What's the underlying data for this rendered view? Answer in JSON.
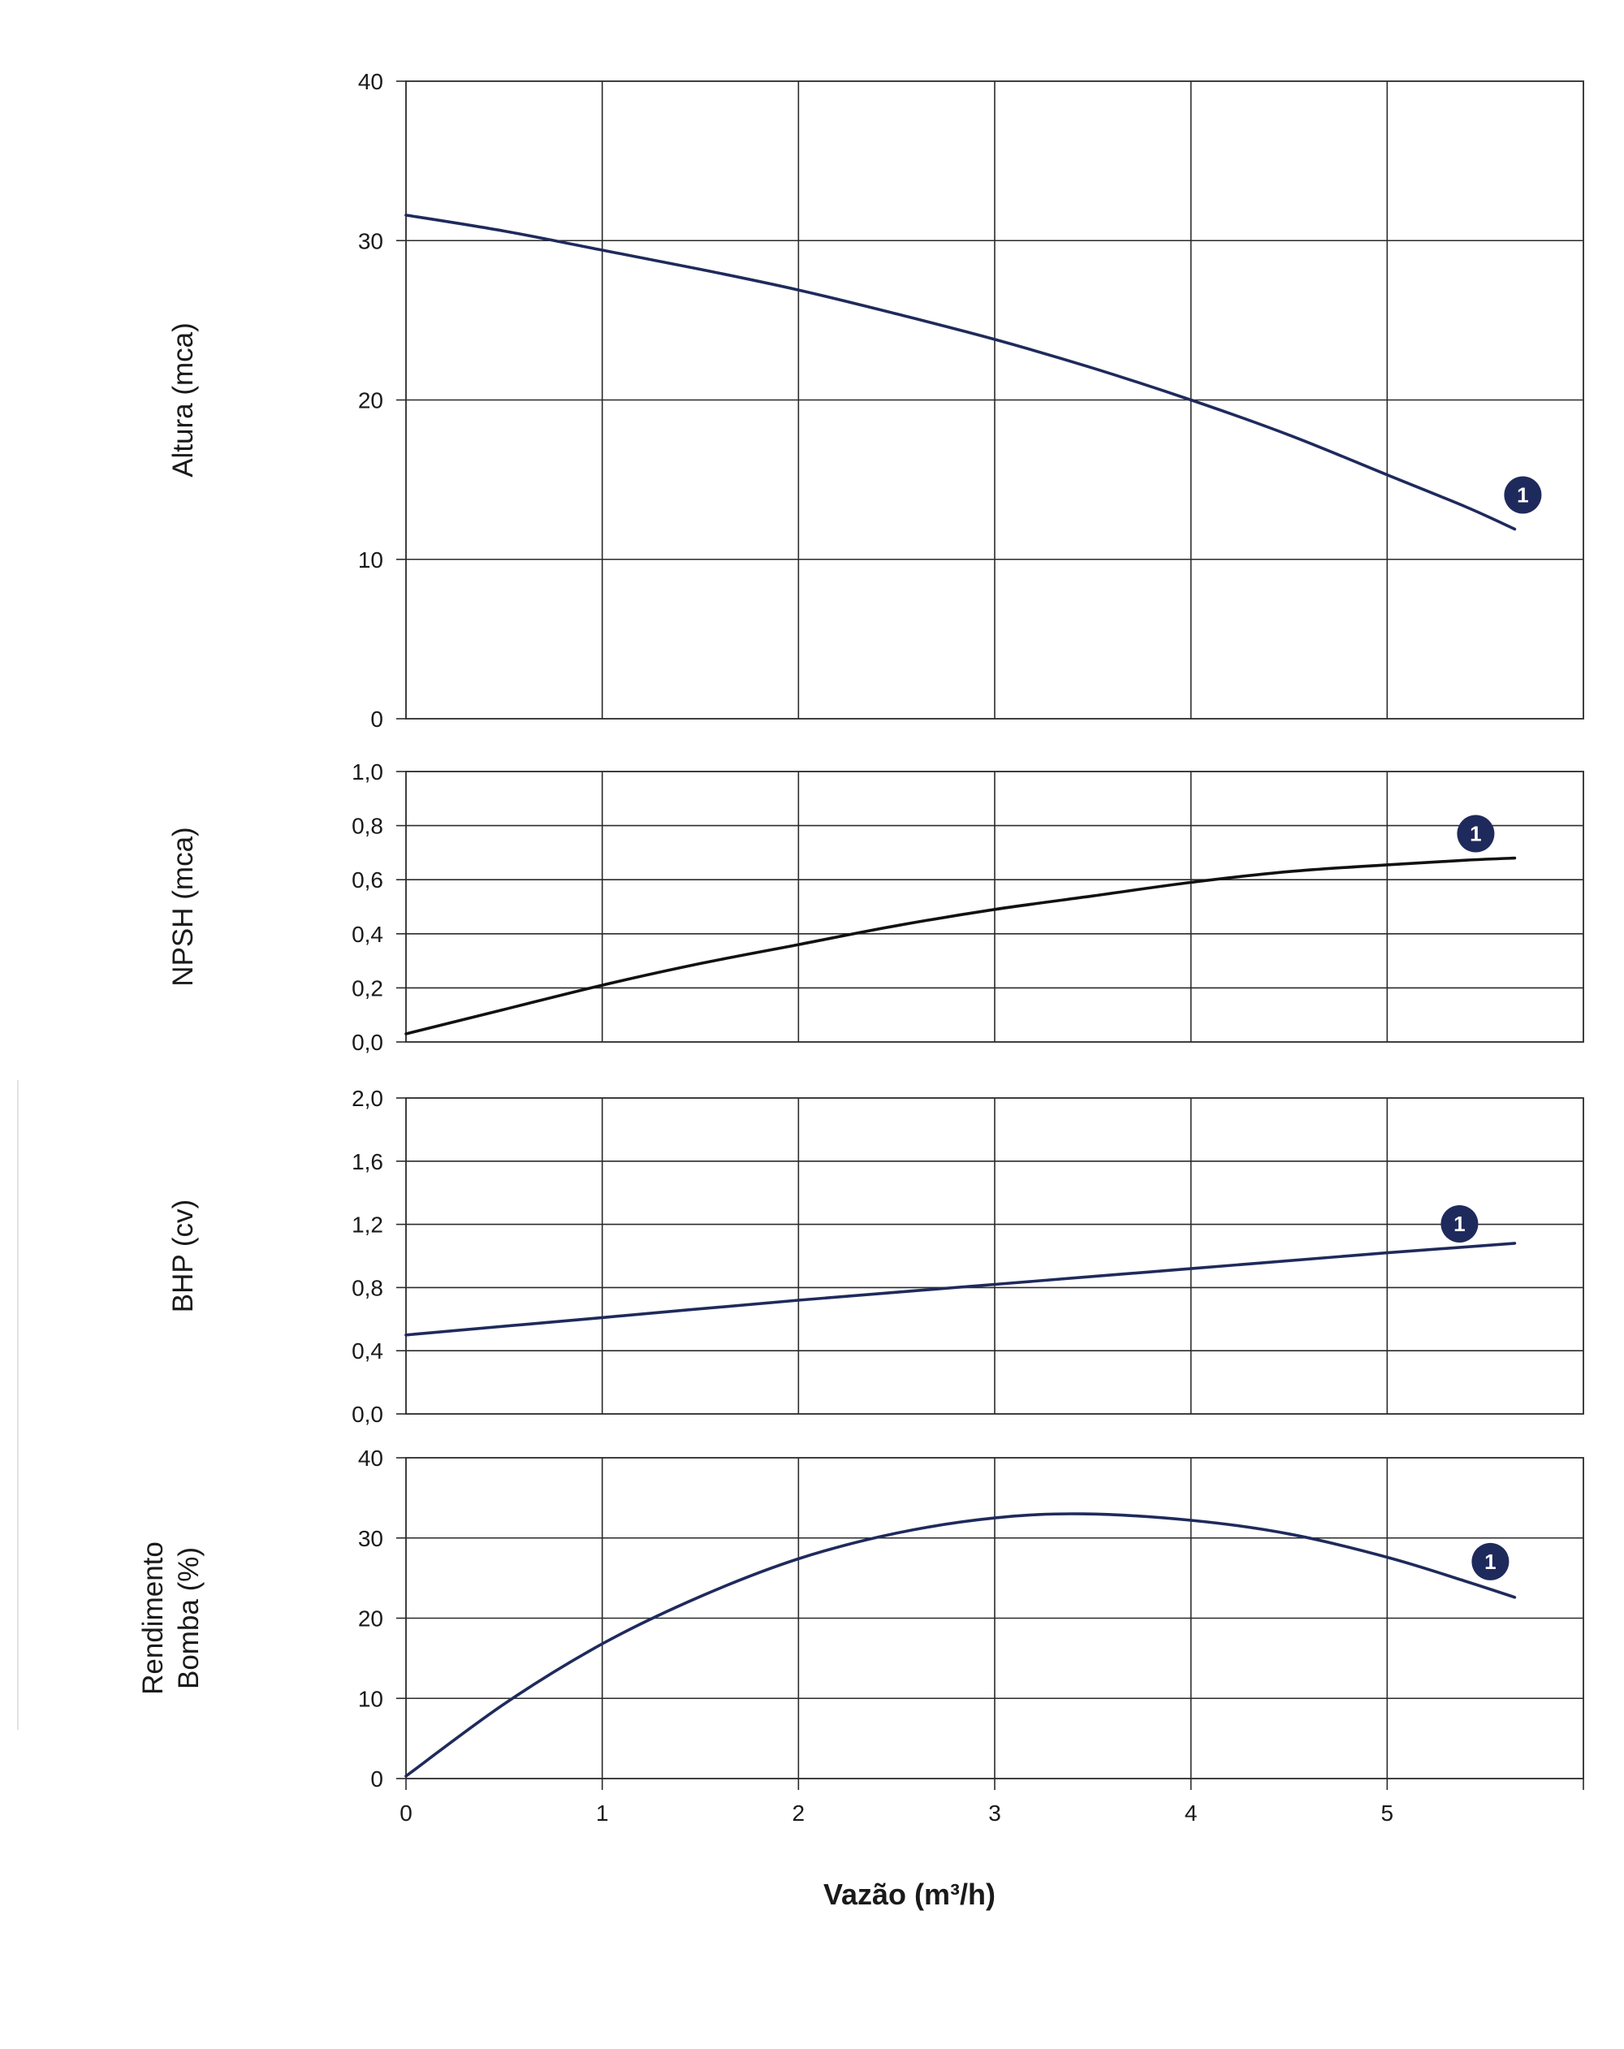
{
  "chart_data": [
    {
      "type": "line",
      "ylabel": "Altura (mca)",
      "ylim": [
        0,
        40
      ],
      "yticks": [
        "0",
        "10",
        "20",
        "30",
        "40"
      ],
      "xlim": [
        0,
        6
      ],
      "grid": true,
      "series": [
        {
          "name": "1",
          "color": "#1f2a5c",
          "x": [
            0,
            0.5,
            1,
            1.5,
            2,
            2.5,
            3,
            3.5,
            4,
            4.5,
            5,
            5.4,
            5.65
          ],
          "y": [
            31.6,
            30.6,
            29.4,
            28.2,
            26.9,
            25.4,
            23.8,
            22.0,
            20.0,
            17.8,
            15.3,
            13.3,
            11.9
          ]
        }
      ]
    },
    {
      "type": "line",
      "ylabel": "NPSH (mca)",
      "ylim": [
        0,
        1.0
      ],
      "yticks": [
        "0,0",
        "0,2",
        "0,4",
        "0,6",
        "0,8",
        "1,0"
      ],
      "xlim": [
        0,
        6
      ],
      "grid": true,
      "series": [
        {
          "name": "1",
          "color": "#111111",
          "x": [
            0,
            0.5,
            1,
            1.5,
            2,
            2.5,
            3,
            3.5,
            4,
            4.5,
            5,
            5.4,
            5.65
          ],
          "y": [
            0.03,
            0.12,
            0.21,
            0.29,
            0.36,
            0.43,
            0.49,
            0.54,
            0.59,
            0.63,
            0.655,
            0.672,
            0.68
          ]
        }
      ]
    },
    {
      "type": "line",
      "ylabel": "BHP (cv)",
      "ylim": [
        0,
        2.0
      ],
      "yticks": [
        "0,0",
        "0,4",
        "0,8",
        "1,2",
        "1,6",
        "2,0"
      ],
      "xlim": [
        0,
        6
      ],
      "grid": true,
      "series": [
        {
          "name": "1",
          "color": "#1f2a5c",
          "x": [
            0,
            1,
            2,
            3,
            4,
            5,
            5.65
          ],
          "y": [
            0.5,
            0.61,
            0.72,
            0.82,
            0.92,
            1.02,
            1.08
          ]
        }
      ]
    },
    {
      "type": "line",
      "ylabel": [
        "Rendimento",
        "Bomba (%)"
      ],
      "ylim": [
        0,
        40
      ],
      "yticks": [
        "0",
        "10",
        "20",
        "30",
        "40"
      ],
      "xlim": [
        0,
        6
      ],
      "xticks": [
        "0",
        "1",
        "2",
        "3",
        "4",
        "5"
      ],
      "xlabel": "Vazão (m³/h)",
      "grid": true,
      "series": [
        {
          "name": "1",
          "color": "#1f2a5c",
          "x": [
            0,
            0.5,
            1,
            1.5,
            2,
            2.5,
            3,
            3.45,
            4,
            4.5,
            5,
            5.4,
            5.65
          ],
          "y": [
            0.3,
            9.3,
            16.8,
            22.7,
            27.4,
            30.6,
            32.5,
            33.0,
            32.2,
            30.5,
            27.6,
            24.6,
            22.6
          ]
        }
      ]
    }
  ],
  "marker": {
    "label": "1",
    "fill": "#1f2a5c"
  },
  "colors": {
    "grid": "#2a2a2a",
    "text": "#1a1a1a"
  }
}
